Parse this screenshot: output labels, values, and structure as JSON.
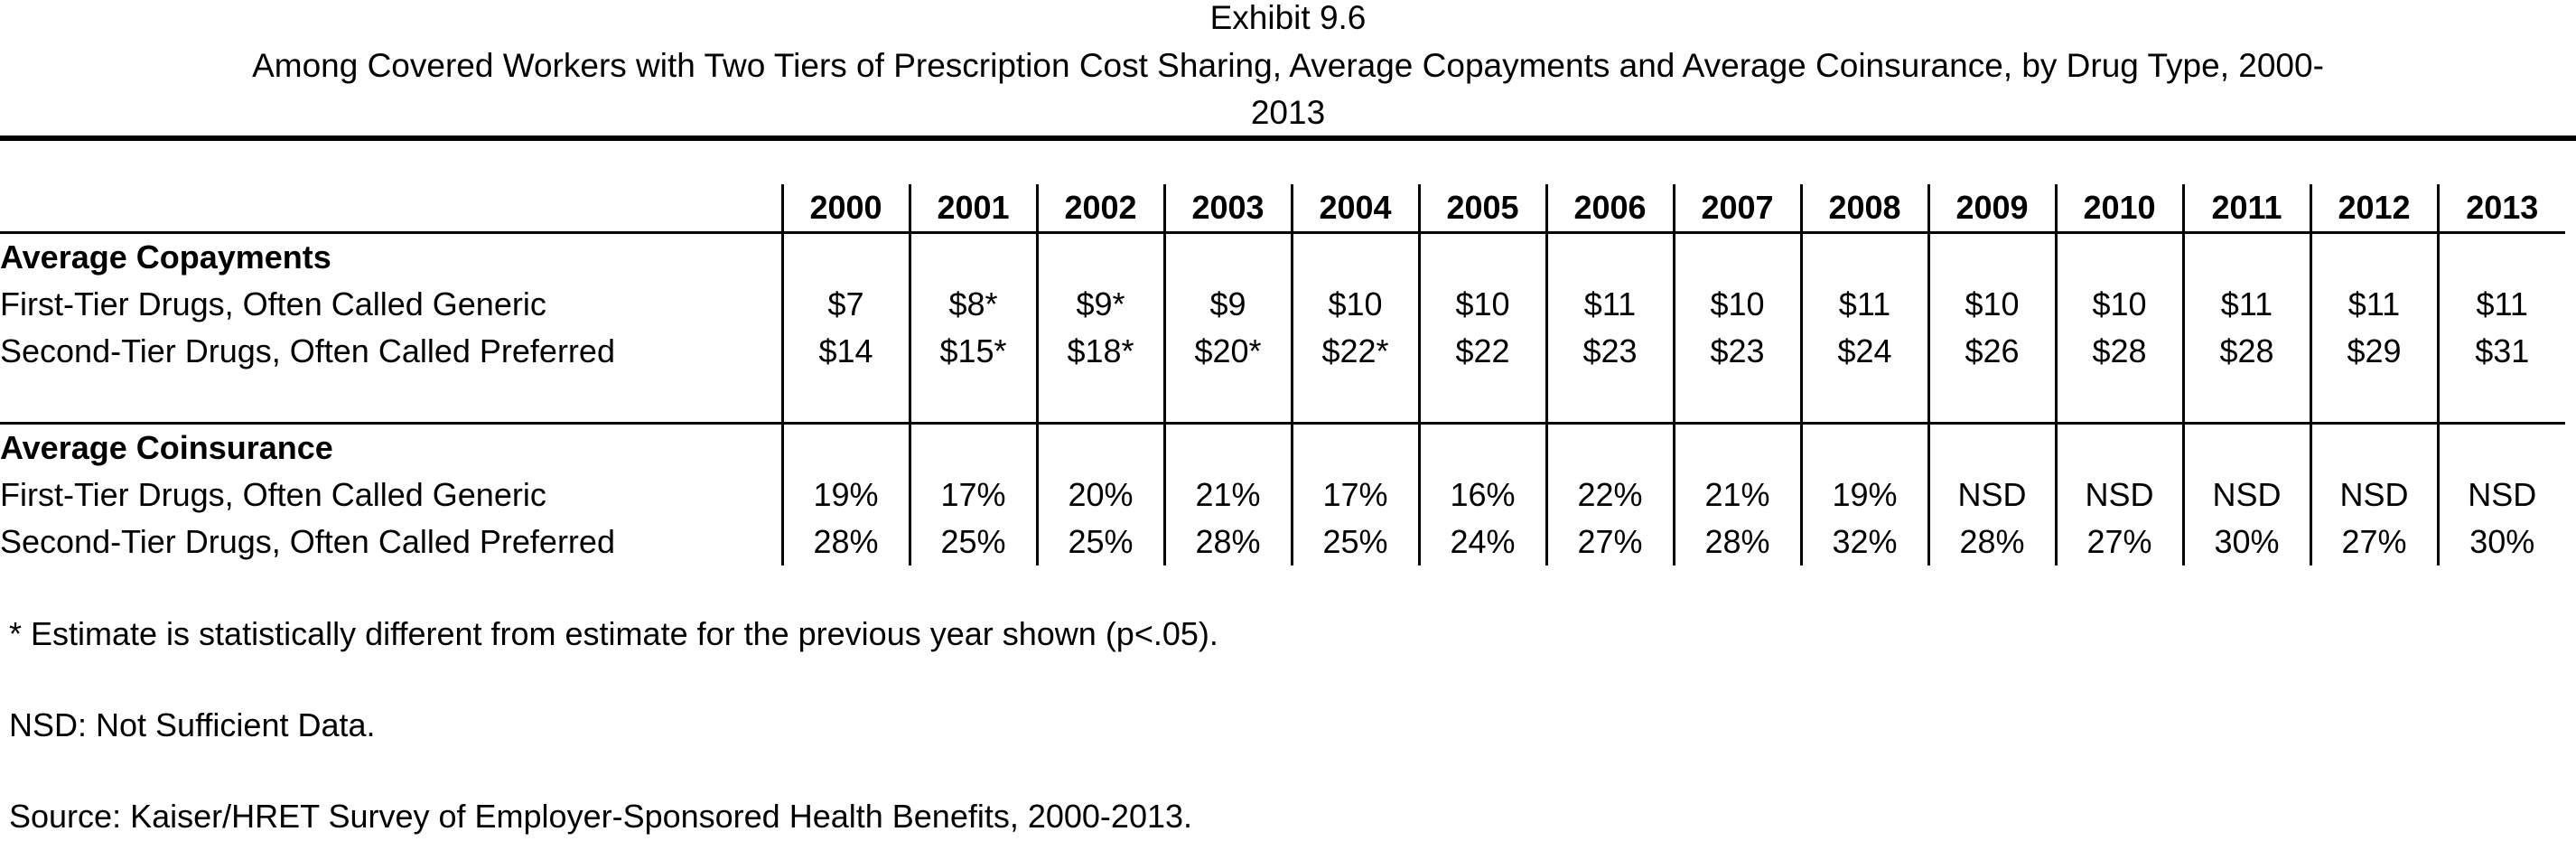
{
  "header": {
    "exhibit": "Exhibit 9.6",
    "title_line1": "Among Covered Workers with Two Tiers of Prescription Cost Sharing, Average Copayments and Average Coinsurance, by Drug Type, 2000-",
    "title_line2": "2013"
  },
  "table": {
    "years": [
      "2000",
      "2001",
      "2002",
      "2003",
      "2004",
      "2005",
      "2006",
      "2007",
      "2008",
      "2009",
      "2010",
      "2011",
      "2012",
      "2013"
    ],
    "sections": [
      {
        "title": "Average Copayments",
        "rows": [
          {
            "label": "First-Tier Drugs, Often Called Generic",
            "values": [
              "$7",
              "$8*",
              "$9*",
              "$9",
              "$10",
              "$10",
              "$11",
              "$10",
              "$11",
              "$10",
              "$10",
              "$11",
              "$11",
              "$11"
            ]
          },
          {
            "label": "Second-Tier Drugs, Often Called Preferred",
            "values": [
              "$14",
              "$15*",
              "$18*",
              "$20*",
              "$22*",
              "$22",
              "$23",
              "$23",
              "$24",
              "$26",
              "$28",
              "$28",
              "$29",
              "$31"
            ]
          }
        ]
      },
      {
        "title": "Average Coinsurance",
        "rows": [
          {
            "label": "First-Tier Drugs, Often Called Generic",
            "values": [
              "19%",
              "17%",
              "20%",
              "21%",
              "17%",
              "16%",
              "22%",
              "21%",
              "19%",
              "NSD",
              "NSD",
              "NSD",
              "NSD",
              "NSD"
            ]
          },
          {
            "label": "Second-Tier Drugs, Often Called Preferred",
            "values": [
              "28%",
              "25%",
              "25%",
              "28%",
              "25%",
              "24%",
              "27%",
              "28%",
              "32%",
              "28%",
              "27%",
              "30%",
              "27%",
              "30%"
            ]
          }
        ]
      }
    ]
  },
  "notes": {
    "significance": "* Estimate is statistically different from estimate for the previous year shown (p<.05).",
    "nsd": "NSD: Not Sufficient Data.",
    "source": "Source: Kaiser/HRET Survey of Employer-Sponsored Health Benefits, 2000-2013."
  }
}
